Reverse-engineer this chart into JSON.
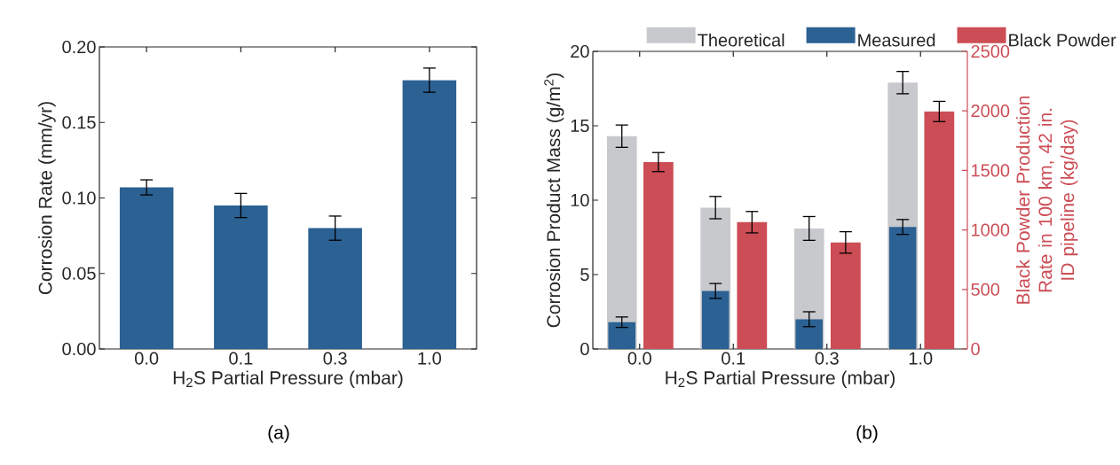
{
  "chart_data": [
    {
      "type": "bar",
      "categories": [
        "0.0",
        "0.1",
        "0.3",
        "1.0"
      ],
      "values": [
        0.107,
        0.095,
        0.08,
        0.178
      ],
      "errors": [
        0.005,
        0.008,
        0.008,
        0.008
      ],
      "color": "#2b6193",
      "ylim": [
        0,
        0.2
      ],
      "yticks": [
        {
          "value": 0,
          "label": "0.00"
        },
        {
          "value": 0.05,
          "label": "0.05"
        },
        {
          "value": 0.1,
          "label": "0.10"
        },
        {
          "value": 0.15,
          "label": "0.15"
        },
        {
          "value": 0.2,
          "label": "0.20"
        }
      ],
      "xlabel": "H$_{2}$S Partial Pressure (mbar)",
      "ylabel": "Corrosion Rate (mm/yr)",
      "annotations": [
        "(a)"
      ]
    },
    {
      "type": "bar",
      "categories": [
        "0.0",
        "0.1",
        "0.3",
        "1.0"
      ],
      "series": [
        {
          "name": "Theoretical",
          "color": "#c8c9cc",
          "values": [
            14.3,
            9.5,
            8.1,
            17.9
          ],
          "errors": [
            0.75,
            0.75,
            0.8,
            0.75
          ]
        },
        {
          "name": "Measured",
          "color": "#2b6193",
          "values": [
            1.8,
            3.9,
            2.0,
            8.2
          ],
          "errors": [
            0.35,
            0.5,
            0.5,
            0.5
          ]
        },
        {
          "name": "Black Powder",
          "color": "#cc4d55",
          "axis": "y2",
          "values": [
            1570,
            1065,
            895,
            1995
          ],
          "errors": [
            80,
            90,
            90,
            85
          ]
        }
      ],
      "ylim": [
        0,
        20
      ],
      "yticks": [
        0,
        5,
        10,
        15,
        20
      ],
      "y2lim": [
        0,
        2500
      ],
      "y2ticks": [
        0,
        500,
        1000,
        1500,
        2000,
        2500
      ],
      "xlabel": "H$_{2}$S Partial Pressure (mbar)",
      "ylabel": "Corrosion Product Mass (g/m$^{2}$)",
      "y2label": "Black Powder Production Rate in 100 km, 42 in. ID pipeline (kg/day)",
      "legend": "top",
      "annotations": [
        "(b)"
      ]
    }
  ]
}
